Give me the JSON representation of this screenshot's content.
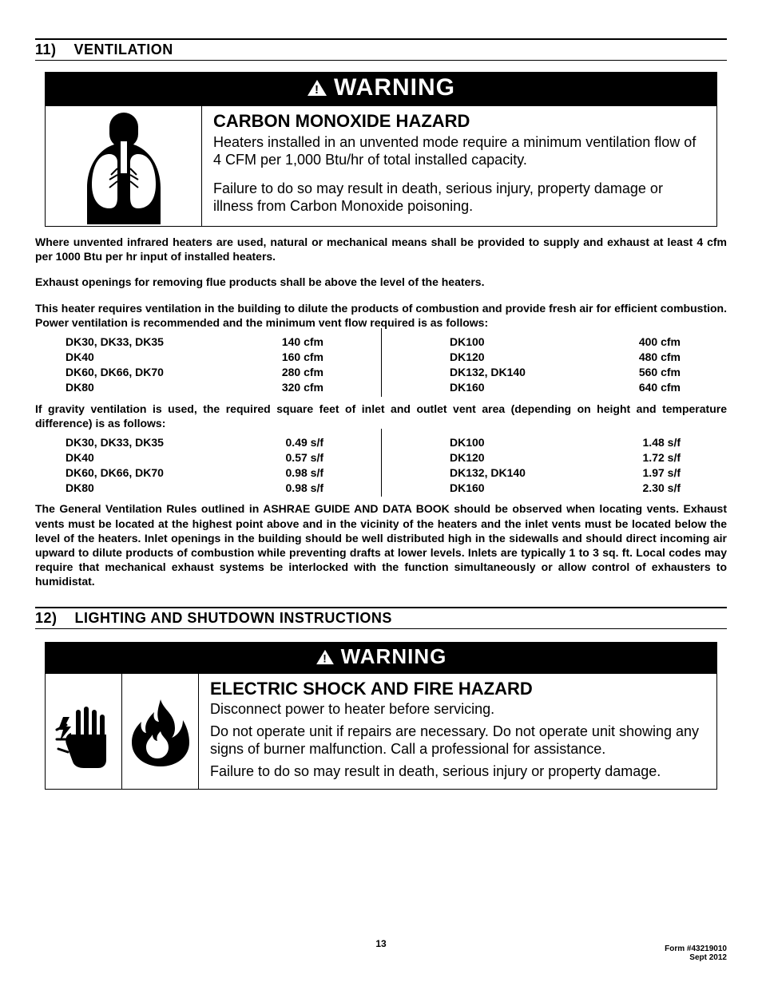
{
  "section11": {
    "num": "11)",
    "title": "VENTILATION"
  },
  "warn1": {
    "label": "WARNING",
    "hazard": "CARBON MONOXIDE HAZARD",
    "p1": "Heaters installed in an unvented mode require a minimum ventilation flow of 4 CFM per 1,000 Btu/hr of total installed capacity.",
    "p2": "Failure to do so may result in death, serious injury, property damage or illness from Carbon Monoxide poisoning."
  },
  "para1": "Where unvented infrared heaters are used, natural or mechanical means shall be provided to supply and exhaust at least 4 cfm per 1000 Btu per hr input of installed heaters.",
  "para2": "Exhaust openings for removing flue products shall be above the level of the heaters.",
  "para3": "This heater requires ventilation in the building to dilute the products of combustion and provide fresh air for efficient combustion.  Power ventilation is recommended and the minimum vent flow required is as follows:",
  "cfm_left": [
    {
      "m": "DK30, DK33, DK35",
      "v": "140 cfm"
    },
    {
      "m": "DK40",
      "v": "160 cfm"
    },
    {
      "m": "DK60, DK66, DK70",
      "v": "280 cfm"
    },
    {
      "m": "DK80",
      "v": "320 cfm"
    }
  ],
  "cfm_right": [
    {
      "m": "DK100",
      "v": "400 cfm"
    },
    {
      "m": "DK120",
      "v": "480 cfm"
    },
    {
      "m": "DK132, DK140",
      "v": "560 cfm"
    },
    {
      "m": "DK160",
      "v": "640 cfm"
    }
  ],
  "para4": "If gravity ventilation is used, the required square feet of inlet and outlet vent area (depending on height and temperature difference) is as follows:",
  "sf_left": [
    {
      "m": "DK30, DK33, DK35",
      "v": "0.49 s/f"
    },
    {
      "m": "DK40",
      "v": "0.57 s/f"
    },
    {
      "m": "DK60, DK66, DK70",
      "v": "0.98 s/f"
    },
    {
      "m": "DK80",
      "v": "0.98 s/f"
    }
  ],
  "sf_right": [
    {
      "m": "DK100",
      "v": "1.48 s/f"
    },
    {
      "m": "DK120",
      "v": "1.72 s/f"
    },
    {
      "m": "DK132, DK140",
      "v": "1.97 s/f"
    },
    {
      "m": "DK160",
      "v": "2.30 s/f"
    }
  ],
  "para5": "The General Ventilation Rules outlined in ASHRAE GUIDE AND DATA BOOK should be observed when locating vents.  Exhaust vents must be located at the highest point above and in the vicinity of the heaters and the inlet vents must be located below the level of the heaters. Inlet openings in the building should be well distributed high in the sidewalls and should direct incoming air upward to dilute products of combustion while preventing drafts at lower levels. Inlets are typically 1 to 3 sq. ft. Local codes may require that mechanical exhaust systems be interlocked with the function simultaneously or allow control of exhausters to humidistat.",
  "section12": {
    "num": "12)",
    "title": "LIGHTING AND SHUTDOWN INSTRUCTIONS"
  },
  "warn2": {
    "label": "WARNING",
    "hazard": "ELECTRIC SHOCK AND FIRE HAZARD",
    "p1": "Disconnect power to heater before servicing.",
    "p2": "Do not operate unit if repairs are necessary. Do not operate unit showing any signs of burner malfunction. Call a professional for assistance.",
    "p3": "Failure to do so may result in death, serious injury or property damage."
  },
  "page": "13",
  "form": "Form #43219010",
  "date": "Sept 2012"
}
